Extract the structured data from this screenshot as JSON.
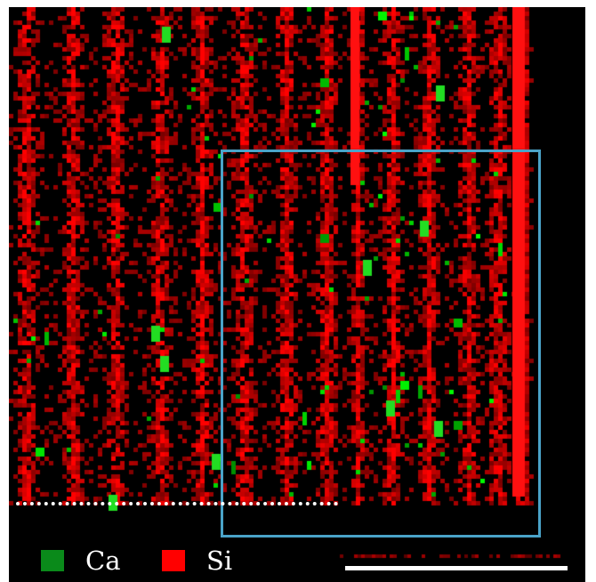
{
  "legend": [
    {
      "label": "Ca",
      "color": "#0a8a1a"
    },
    {
      "label": "Si",
      "color": "#ff0000"
    }
  ],
  "colors": {
    "background": "#000000",
    "region_box": "#4aa3c8",
    "baseline": "#ffffff",
    "scale_bar": "#ffffff"
  }
}
